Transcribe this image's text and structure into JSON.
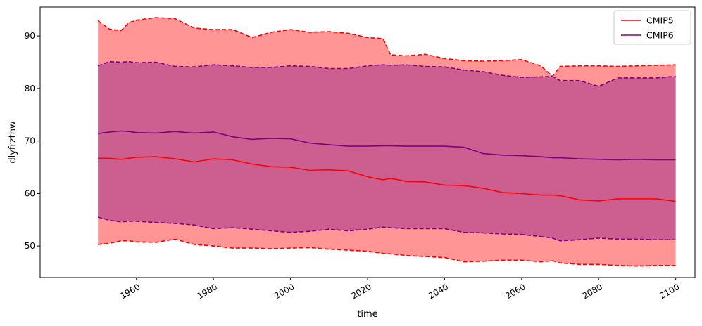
{
  "chart_data": {
    "type": "area",
    "xlabel": "time",
    "ylabel": "dlyfrzthw",
    "xlim": [
      1935,
      2105
    ],
    "ylim": [
      44,
      95.5
    ],
    "x_ticks": [
      1960,
      1980,
      2000,
      2020,
      2040,
      2060,
      2080,
      2100
    ],
    "x_tick_labels": [
      "1960",
      "1980",
      "2000",
      "2020",
      "2040",
      "2060",
      "2080",
      "2100"
    ],
    "y_ticks": [
      50,
      60,
      70,
      80,
      90
    ],
    "y_tick_labels": [
      "50",
      "60",
      "70",
      "80",
      "90"
    ],
    "grid": false,
    "legend_placement": "top-right",
    "series": [
      {
        "name": "CMIP5",
        "color": "#ff0000",
        "fill_color": "#ff9595",
        "x": [
          1950,
          1953,
          1956,
          1958,
          1960,
          1965,
          1970,
          1975,
          1980,
          1985,
          1990,
          1995,
          2000,
          2005,
          2010,
          2015,
          2020,
          2024,
          2026,
          2030,
          2035,
          2040,
          2045,
          2050,
          2055,
          2060,
          2065,
          2068,
          2070,
          2075,
          2080,
          2085,
          2090,
          2095,
          2100
        ],
        "mean": [
          66.7,
          66.7,
          66.5,
          66.7,
          66.9,
          67.0,
          66.6,
          66.0,
          66.6,
          66.4,
          65.6,
          65.1,
          65.0,
          64.4,
          64.5,
          64.3,
          63.2,
          62.6,
          62.9,
          62.3,
          62.2,
          61.6,
          61.5,
          61.0,
          60.2,
          60.0,
          59.7,
          59.7,
          59.6,
          58.8,
          58.6,
          59.0,
          59.0,
          59.0,
          58.5
        ],
        "upper": [
          92.9,
          91.3,
          91.0,
          92.5,
          93.0,
          93.5,
          93.3,
          91.5,
          91.2,
          91.2,
          89.7,
          90.7,
          91.2,
          90.7,
          90.8,
          90.5,
          89.7,
          89.5,
          86.4,
          86.2,
          86.5,
          85.7,
          85.3,
          85.2,
          85.3,
          85.5,
          84.3,
          82.3,
          84.2,
          84.3,
          84.3,
          84.2,
          84.3,
          84.4,
          84.5
        ],
        "lower": [
          50.3,
          50.5,
          51.0,
          51.0,
          50.8,
          50.7,
          51.3,
          50.3,
          50.0,
          49.6,
          49.6,
          49.5,
          49.6,
          49.7,
          49.4,
          49.2,
          49.0,
          48.6,
          48.5,
          48.2,
          48.0,
          47.8,
          47.0,
          47.1,
          47.3,
          47.3,
          47.0,
          47.2,
          46.8,
          46.5,
          46.5,
          46.3,
          46.2,
          46.3,
          46.3
        ]
      },
      {
        "name": "CMIP6",
        "color": "#800080",
        "fill_color": "#c95a8f",
        "x": [
          1950,
          1953,
          1956,
          1958,
          1960,
          1965,
          1970,
          1975,
          1980,
          1985,
          1990,
          1995,
          2000,
          2005,
          2010,
          2015,
          2020,
          2024,
          2026,
          2030,
          2035,
          2040,
          2045,
          2050,
          2055,
          2060,
          2065,
          2068,
          2070,
          2075,
          2080,
          2085,
          2090,
          2095,
          2100
        ],
        "mean": [
          71.4,
          71.7,
          71.9,
          71.8,
          71.6,
          71.5,
          71.8,
          71.5,
          71.7,
          70.8,
          70.3,
          70.5,
          70.4,
          69.6,
          69.3,
          69.0,
          69.0,
          69.1,
          69.1,
          69.0,
          69.0,
          69.0,
          68.8,
          67.6,
          67.3,
          67.2,
          67.0,
          66.8,
          66.8,
          66.6,
          66.5,
          66.4,
          66.5,
          66.4,
          66.4
        ],
        "upper": [
          84.3,
          85.1,
          85.0,
          85.1,
          84.9,
          85.0,
          84.2,
          84.1,
          84.5,
          84.3,
          84.0,
          84.0,
          84.3,
          84.2,
          83.8,
          83.8,
          84.3,
          84.5,
          84.4,
          84.5,
          84.2,
          84.1,
          83.5,
          83.2,
          82.5,
          82.1,
          82.2,
          82.3,
          81.5,
          81.5,
          80.4,
          82.0,
          82.0,
          82.0,
          82.3
        ],
        "lower": [
          55.5,
          54.9,
          54.6,
          54.7,
          54.7,
          54.5,
          54.3,
          54.0,
          53.3,
          53.5,
          53.2,
          52.9,
          52.6,
          52.8,
          53.2,
          52.9,
          53.2,
          53.6,
          53.5,
          53.3,
          53.3,
          53.3,
          52.6,
          52.5,
          52.3,
          52.2,
          51.8,
          51.5,
          51.0,
          51.2,
          51.5,
          51.3,
          51.3,
          51.2,
          51.2
        ]
      }
    ]
  }
}
